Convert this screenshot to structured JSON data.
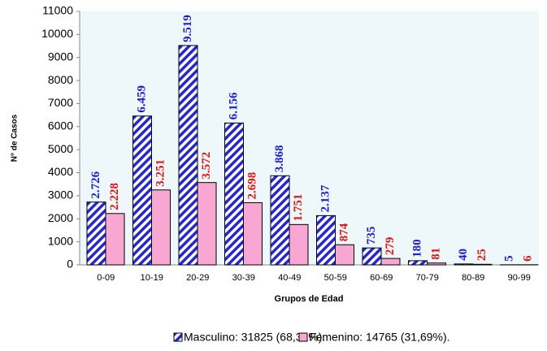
{
  "chart_data": {
    "type": "bar",
    "categories": [
      "0-09",
      "10-19",
      "20-29",
      "30-39",
      "40-49",
      "50-59",
      "60-69",
      "70-79",
      "80-89",
      "90-99"
    ],
    "series": [
      {
        "name": "Masculino: 31825 (68,31%).",
        "color": "#2424d8",
        "pattern": "hatch",
        "label_color": "#1a1ae0",
        "values": [
          2726,
          6459,
          9519,
          6156,
          3868,
          2137,
          735,
          180,
          40,
          5
        ],
        "value_labels": [
          "2.726",
          "6.459",
          "9.519",
          "6.156",
          "3.868",
          "2.137",
          "735",
          "180",
          "40",
          "5"
        ]
      },
      {
        "name": "Femenino: 14765 (31,69%).",
        "color": "#f8a6d2",
        "pattern": "solid",
        "label_color": "#e81010",
        "values": [
          2228,
          3251,
          3572,
          2698,
          1751,
          874,
          279,
          81,
          25,
          6
        ],
        "value_labels": [
          "2.228",
          "3.251",
          "3.572",
          "2.698",
          "1.751",
          "874",
          "279",
          "81",
          "25",
          "6"
        ]
      }
    ],
    "ylim": [
      0,
      11000
    ],
    "yticks": [
      0,
      1000,
      2000,
      3000,
      4000,
      5000,
      6000,
      7000,
      8000,
      9000,
      10000,
      11000
    ],
    "ylabel": "N° de Casos",
    "xlabel": "Grupos de Edad",
    "grid": false,
    "legend": "bottom"
  }
}
